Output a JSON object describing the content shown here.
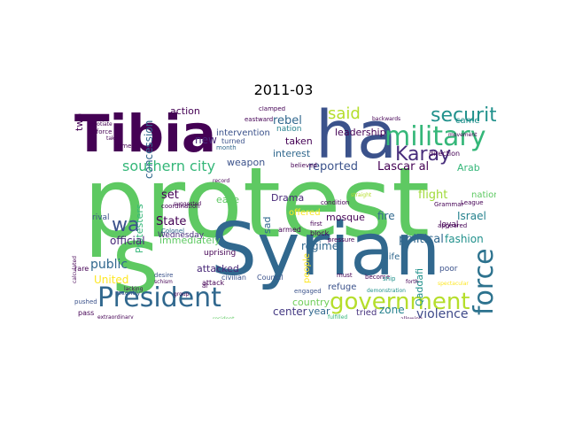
{
  "title": "2011-03",
  "words": {
    "protest": {
      "text": "protest",
      "color": "#5ec962"
    },
    "syrian": {
      "text": "Syrian",
      "color": "#31688e"
    },
    "tibia": {
      "text": "Tibia",
      "color": "#440154"
    },
    "ha": {
      "text": "ha",
      "color": "#3b528b"
    },
    "s": {
      "text": "s",
      "color": "#5ec962"
    },
    "president": {
      "text": "President",
      "color": "#31688e"
    },
    "military": {
      "text": "military",
      "color": "#35b779"
    },
    "government": {
      "text": "government",
      "color": "#b5de2b"
    },
    "force": {
      "text": "force",
      "color": "#2c728e"
    },
    "security": {
      "text": "security",
      "color": "#21918c"
    },
    "karay": {
      "text": "Karay",
      "color": "#472d7b"
    },
    "said": {
      "text": "said",
      "color": "#b5de2b"
    },
    "wa": {
      "text": "wa",
      "color": "#3b528b"
    },
    "southern_city": {
      "text": "southern city",
      "color": "#35b779"
    },
    "rebel": {
      "text": "rebel",
      "color": "#31688e"
    },
    "leadership": {
      "text": "leadership",
      "color": "#440154"
    },
    "lascar_al": {
      "text": "Lascar al",
      "color": "#440154"
    },
    "reported": {
      "text": "reported",
      "color": "#3b528b"
    },
    "political": {
      "text": "political",
      "color": "#31688e"
    },
    "fashion": {
      "text": "fashion",
      "color": "#21918c"
    },
    "violence": {
      "text": "violence",
      "color": "#3e4989"
    },
    "country": {
      "text": "country",
      "color": "#6ece58"
    },
    "zone": {
      "text": "zone",
      "color": "#26828e"
    },
    "center": {
      "text": "center",
      "color": "#443983"
    },
    "year": {
      "text": "year",
      "color": "#31688e"
    },
    "tried": {
      "text": "tried",
      "color": "#46327e"
    },
    "public": {
      "text": "public",
      "color": "#31688e"
    },
    "official": {
      "text": "official",
      "color": "#482878"
    },
    "immediately": {
      "text": "immediately",
      "color": "#5ec962"
    },
    "state": {
      "text": "State",
      "color": "#440154"
    },
    "set": {
      "text": "set",
      "color": "#440154"
    },
    "united": {
      "text": "United",
      "color": "#fde725"
    },
    "attacked": {
      "text": "attacked",
      "color": "#482878"
    },
    "regime": {
      "text": "regime",
      "color": "#31688e"
    },
    "refuge": {
      "text": "refuge",
      "color": "#3b528b"
    },
    "mosque": {
      "text": "mosque",
      "color": "#440154"
    },
    "fire": {
      "text": "fire",
      "color": "#31688e"
    },
    "israel": {
      "text": "Israel",
      "color": "#26828e"
    },
    "flight": {
      "text": "flight",
      "color": "#a0da39"
    },
    "arab": {
      "text": "Arab",
      "color": "#35b779"
    },
    "came": {
      "text": "came",
      "color": "#21918c"
    },
    "life": {
      "text": "life",
      "color": "#31688e"
    },
    "qaddafi": {
      "text": "Qaddafi",
      "color": "#21918c"
    },
    "national": {
      "text": "national",
      "color": "#5ec962"
    },
    "drama": {
      "text": "Drama",
      "color": "#482878"
    },
    "offered": {
      "text": "offered",
      "color": "#fde725"
    },
    "sad": {
      "text": "sad",
      "color": "#31688e"
    },
    "wednesday": {
      "text": "Wednesday",
      "color": "#472d7b"
    },
    "interest": {
      "text": "interest",
      "color": "#31688e"
    },
    "taken": {
      "text": "taken",
      "color": "#440154"
    },
    "nation": {
      "text": "nation",
      "color": "#26828e"
    },
    "action": {
      "text": "action",
      "color": "#440154"
    },
    "intervention": {
      "text": "intervention",
      "color": "#3b528b"
    },
    "new": {
      "text": "new",
      "color": "#482878"
    },
    "weapon": {
      "text": "weapon",
      "color": "#3b528b"
    },
    "ease": {
      "text": "ease",
      "color": "#5ec962"
    },
    "protesters": {
      "text": "Protesters",
      "color": "#35b779"
    },
    "concession": {
      "text": "concession",
      "color": "#31688e"
    },
    "uprising": {
      "text": "uprising",
      "color": "#440154"
    },
    "armed": {
      "text": "armed",
      "color": "#440154"
    },
    "block": {
      "text": "block",
      "color": "#440154"
    },
    "poor": {
      "text": "poor",
      "color": "#3b528b"
    },
    "rival": {
      "text": "rival",
      "color": "#3b528b"
    },
    "loyal": {
      "text": "loyal",
      "color": "#440154"
    },
    "two": {
      "text": "two",
      "color": "#440154"
    },
    "eastward": {
      "text": "eastward",
      "color": "#440154"
    },
    "clamped": {
      "text": "clamped",
      "color": "#440154"
    },
    "turned": {
      "text": "turned",
      "color": "#3b528b"
    },
    "month": {
      "text": "month",
      "color": "#31688e"
    },
    "council": {
      "text": "Council",
      "color": "#3b528b"
    },
    "civilian": {
      "text": "civilian",
      "color": "#3b528b"
    },
    "attack": {
      "text": "attack",
      "color": "#440154"
    },
    "coordination": {
      "text": "coordination",
      "color": "#440154"
    },
    "colonel": {
      "text": "Colonel",
      "color": "#31688e"
    },
    "rare": {
      "text": "rare",
      "color": "#440154"
    },
    "pushed": {
      "text": "pushed",
      "color": "#3b528b"
    },
    "pass": {
      "text": "pass",
      "color": "#440154"
    },
    "recently": {
      "text": "recently",
      "color": "#3b528b"
    },
    "desire": {
      "text": "desire",
      "color": "#3b528b"
    },
    "engaged": {
      "text": "engaged",
      "color": "#3b528b"
    },
    "must": {
      "text": "must",
      "color": "#440154"
    },
    "become": {
      "text": "become",
      "color": "#440154"
    },
    "ship": {
      "text": "ship",
      "color": "#21918c"
    },
    "direction": {
      "text": "direction",
      "color": "#440154"
    },
    "grammar": {
      "text": "Grammar",
      "color": "#440154"
    },
    "league": {
      "text": "League",
      "color": "#440154"
    },
    "appeared": {
      "text": "appeared",
      "color": "#440154"
    },
    "first": {
      "text": "first",
      "color": "#440154"
    },
    "condition": {
      "text": "condition",
      "color": "#440154"
    },
    "believed": {
      "text": "believed",
      "color": "#440154"
    },
    "pressure": {
      "text": "pressure",
      "color": "#440154"
    },
    "people": {
      "text": "people",
      "color": "#fde725"
    },
    "lacking": {
      "text": "lacking",
      "color": "#440154"
    },
    "prime": {
      "text": "prime",
      "color": "#440154"
    },
    "group": {
      "text": "group",
      "color": "#440154"
    },
    "enforce": {
      "text": "enforce",
      "color": "#440154"
    },
    "negotiate": {
      "text": "negotiate",
      "color": "#440154"
    },
    "take": {
      "text": "take",
      "color": "#440154"
    },
    "forth": {
      "text": "forth",
      "color": "#440154"
    },
    "straight": {
      "text": "straight",
      "color": "#b5de2b"
    },
    "demonstration": {
      "text": "demonstration",
      "color": "#21918c"
    },
    "movement": {
      "text": "movement",
      "color": "#440154"
    },
    "record": {
      "text": "record",
      "color": "#440154"
    },
    "suggested": {
      "text": "suggested",
      "color": "#440154"
    },
    "al": {
      "text": "al",
      "color": "#440154"
    },
    "schism": {
      "text": "schism",
      "color": "#440154"
    },
    "extraordinary": {
      "text": "extraordinary",
      "color": "#440154"
    },
    "resident": {
      "text": "resident",
      "color": "#5ec962"
    },
    "fulfilled": {
      "text": "fulfilled",
      "color": "#35b779"
    },
    "allowing": {
      "text": "allowing",
      "color": "#440154"
    },
    "backwards": {
      "text": "backwards",
      "color": "#440154"
    },
    "calculated": {
      "text": "calculated",
      "color": "#440154"
    },
    "spectacular": {
      "text": "spectacular",
      "color": "#fde725"
    }
  }
}
